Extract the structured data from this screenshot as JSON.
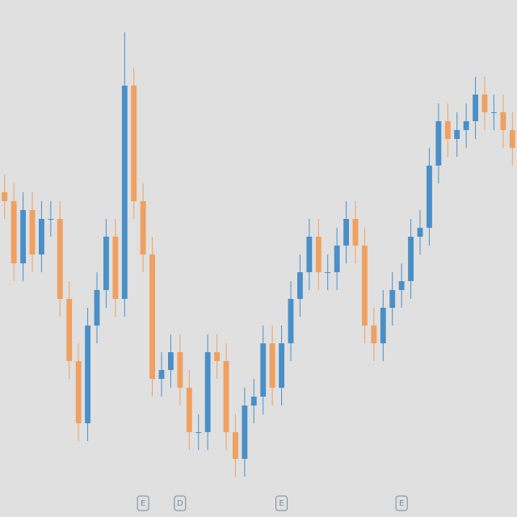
{
  "chart_data": {
    "type": "candlestick",
    "open": [
      37,
      36,
      29,
      35,
      30,
      34,
      34,
      25,
      18,
      11,
      22,
      26,
      32,
      25,
      49,
      36,
      30,
      16,
      17,
      19,
      15,
      10,
      10,
      19,
      18,
      10,
      7,
      13,
      14,
      20,
      15,
      20,
      25,
      28,
      32,
      28,
      28,
      31,
      34,
      31,
      22,
      20,
      24,
      26,
      27,
      32,
      33,
      40,
      45,
      43,
      44,
      45,
      48,
      46,
      46,
      44
    ],
    "high": [
      39,
      38,
      37,
      37,
      36,
      36,
      36,
      27,
      20,
      24,
      28,
      34,
      34,
      55,
      51,
      38,
      32,
      19,
      21,
      21,
      17,
      12,
      21,
      21,
      20,
      12,
      15,
      16,
      22,
      22,
      22,
      27,
      30,
      34,
      34,
      30,
      33,
      36,
      36,
      33,
      24,
      26,
      28,
      29,
      34,
      35,
      42,
      47,
      47,
      46,
      47,
      50,
      50,
      48,
      48,
      46
    ],
    "low": [
      34,
      27,
      27,
      28,
      28,
      32,
      23,
      16,
      9,
      9,
      20,
      24,
      23,
      23,
      34,
      28,
      14,
      14,
      15,
      13,
      8,
      8,
      8,
      16,
      8,
      5,
      5,
      11,
      12,
      13,
      13,
      18,
      23,
      26,
      26,
      26,
      26,
      29,
      29,
      20,
      18,
      18,
      22,
      24,
      25,
      30,
      31,
      38,
      41,
      41,
      42,
      43,
      44,
      44,
      42,
      40
    ],
    "close": [
      36,
      29,
      35,
      30,
      34,
      34,
      25,
      18,
      11,
      22,
      26,
      32,
      25,
      49,
      36,
      30,
      16,
      17,
      19,
      15,
      10,
      10,
      19,
      18,
      10,
      7,
      13,
      14,
      20,
      15,
      20,
      25,
      28,
      32,
      28,
      28,
      31,
      34,
      31,
      22,
      20,
      24,
      26,
      27,
      32,
      33,
      40,
      45,
      43,
      44,
      45,
      48,
      46,
      46,
      44,
      42
    ],
    "up_color": "#4a90c8",
    "down_color": "#f0a060",
    "events": [
      {
        "label": "E",
        "index": 15
      },
      {
        "label": "D",
        "index": 19
      },
      {
        "label": "E",
        "index": 30
      },
      {
        "label": "E",
        "index": 43
      }
    ]
  }
}
